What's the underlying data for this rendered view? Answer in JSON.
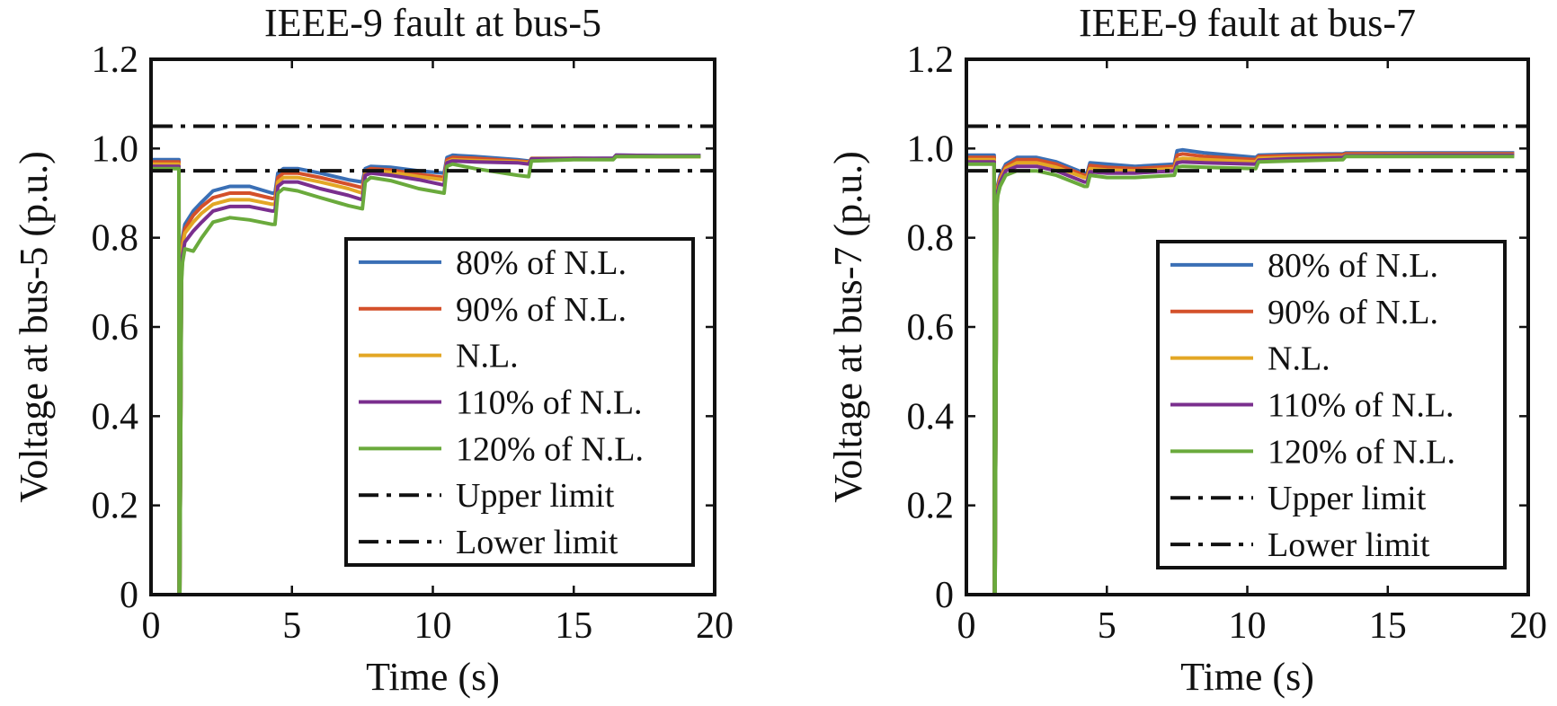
{
  "chart_data": [
    {
      "type": "line",
      "title": "IEEE-9 fault at bus-5",
      "xlabel": "Time (s)",
      "ylabel": "Voltage at bus-5 (p.u.)",
      "xlim": [
        0,
        20
      ],
      "ylim": [
        0,
        1.2
      ],
      "xticks": [
        "0",
        "5",
        "10",
        "15",
        "20"
      ],
      "yticks": [
        "0",
        "0.2",
        "0.4",
        "0.6",
        "0.8",
        "1.0",
        "1.2"
      ],
      "grid": false,
      "legend_position": "bottom-right",
      "limits": [
        {
          "name": "Upper limit",
          "value": 1.05
        },
        {
          "name": "Lower limit",
          "value": 0.95
        }
      ],
      "series": [
        {
          "name": "80% of N.L.",
          "color": "#3a6fb5",
          "x": [
            0,
            0.99,
            1.0,
            1.02,
            1.08,
            1.12,
            1.2,
            1.5,
            1.8,
            2.2,
            2.8,
            3.5,
            4.3,
            4.4,
            4.5,
            4.7,
            5.2,
            6.0,
            7.0,
            7.5,
            7.6,
            7.8,
            8.5,
            9.5,
            10.4,
            10.5,
            10.7,
            11.5,
            13.0,
            13.4,
            13.5,
            15.0,
            16.4,
            16.5,
            18.0,
            19.5
          ],
          "y": [
            0.975,
            0.975,
            0.0,
            0.0,
            0.74,
            0.8,
            0.83,
            0.86,
            0.88,
            0.905,
            0.915,
            0.915,
            0.9,
            0.9,
            0.945,
            0.955,
            0.955,
            0.945,
            0.93,
            0.925,
            0.955,
            0.96,
            0.958,
            0.95,
            0.945,
            0.98,
            0.985,
            0.982,
            0.975,
            0.972,
            0.975,
            0.977,
            0.978,
            0.985,
            0.984,
            0.984
          ]
        },
        {
          "name": "90% of N.L.",
          "color": "#d4502a",
          "x": [
            0,
            0.99,
            1.0,
            1.02,
            1.08,
            1.12,
            1.2,
            1.5,
            1.8,
            2.2,
            2.8,
            3.5,
            4.3,
            4.4,
            4.5,
            4.7,
            5.2,
            6.0,
            7.0,
            7.5,
            7.6,
            7.8,
            8.5,
            9.5,
            10.4,
            10.5,
            10.7,
            11.5,
            13.0,
            13.4,
            13.5,
            15.0,
            16.4,
            16.5,
            18.0,
            19.5
          ],
          "y": [
            0.97,
            0.97,
            0.0,
            0.0,
            0.73,
            0.79,
            0.82,
            0.85,
            0.87,
            0.89,
            0.9,
            0.9,
            0.888,
            0.888,
            0.935,
            0.945,
            0.945,
            0.935,
            0.92,
            0.912,
            0.95,
            0.955,
            0.952,
            0.942,
            0.935,
            0.975,
            0.98,
            0.978,
            0.972,
            0.97,
            0.975,
            0.976,
            0.977,
            0.983,
            0.982,
            0.982
          ]
        },
        {
          "name": "N.L.",
          "color": "#e3a725",
          "x": [
            0,
            0.99,
            1.0,
            1.02,
            1.08,
            1.12,
            1.2,
            1.5,
            1.8,
            2.2,
            2.8,
            3.5,
            4.3,
            4.4,
            4.5,
            4.7,
            5.2,
            6.0,
            7.0,
            7.5,
            7.6,
            7.8,
            8.5,
            9.5,
            10.4,
            10.5,
            10.7,
            11.5,
            13.0,
            13.4,
            13.5,
            15.0,
            16.4,
            16.5,
            18.0,
            19.5
          ],
          "y": [
            0.965,
            0.965,
            0.0,
            0.0,
            0.72,
            0.78,
            0.81,
            0.835,
            0.855,
            0.875,
            0.885,
            0.885,
            0.875,
            0.875,
            0.925,
            0.935,
            0.935,
            0.925,
            0.91,
            0.9,
            0.945,
            0.95,
            0.947,
            0.937,
            0.93,
            0.97,
            0.975,
            0.973,
            0.97,
            0.968,
            0.978,
            0.978,
            0.977,
            0.982,
            0.982,
            0.982
          ]
        },
        {
          "name": "110% of N.L.",
          "color": "#7a2f8e",
          "x": [
            0,
            0.99,
            1.0,
            1.02,
            1.08,
            1.12,
            1.2,
            1.5,
            1.8,
            2.2,
            2.8,
            3.5,
            4.3,
            4.4,
            4.5,
            4.7,
            5.2,
            6.0,
            7.0,
            7.5,
            7.6,
            7.8,
            8.5,
            9.5,
            10.4,
            10.5,
            10.7,
            11.5,
            13.0,
            13.4,
            13.5,
            15.0,
            16.4,
            16.5,
            18.0,
            19.5
          ],
          "y": [
            0.96,
            0.96,
            0.0,
            0.0,
            0.71,
            0.76,
            0.79,
            0.815,
            0.835,
            0.86,
            0.87,
            0.87,
            0.86,
            0.86,
            0.915,
            0.925,
            0.925,
            0.91,
            0.895,
            0.885,
            0.94,
            0.945,
            0.94,
            0.93,
            0.918,
            0.968,
            0.972,
            0.97,
            0.968,
            0.965,
            0.977,
            0.978,
            0.978,
            0.985,
            0.984,
            0.984
          ]
        },
        {
          "name": "120% of N.L.",
          "color": "#6aaa3c",
          "x": [
            0,
            0.99,
            1.0,
            1.02,
            1.08,
            1.12,
            1.2,
            1.5,
            1.8,
            2.2,
            2.8,
            3.5,
            4.3,
            4.4,
            4.5,
            4.7,
            5.2,
            6.0,
            7.0,
            7.5,
            7.6,
            7.8,
            8.5,
            9.5,
            10.4,
            10.5,
            10.7,
            11.5,
            13.0,
            13.4,
            13.5,
            15.0,
            16.4,
            16.5,
            18.0,
            19.5
          ],
          "y": [
            0.955,
            0.955,
            0.0,
            0.0,
            0.7,
            0.745,
            0.775,
            0.77,
            0.8,
            0.835,
            0.845,
            0.84,
            0.83,
            0.83,
            0.9,
            0.91,
            0.905,
            0.89,
            0.872,
            0.865,
            0.925,
            0.935,
            0.928,
            0.91,
            0.9,
            0.96,
            0.965,
            0.955,
            0.94,
            0.937,
            0.972,
            0.975,
            0.975,
            0.982,
            0.982,
            0.982
          ]
        }
      ]
    },
    {
      "type": "line",
      "title": "IEEE-9 fault at bus-7",
      "xlabel": "Time (s)",
      "ylabel": "Voltage at bus-7 (p.u.)",
      "xlim": [
        0,
        20
      ],
      "ylim": [
        0,
        1.2
      ],
      "xticks": [
        "0",
        "5",
        "10",
        "15",
        "20"
      ],
      "yticks": [
        "0",
        "0.2",
        "0.4",
        "0.6",
        "0.8",
        "1.0",
        "1.2"
      ],
      "grid": false,
      "legend_position": "bottom-right",
      "limits": [
        {
          "name": "Upper limit",
          "value": 1.05
        },
        {
          "name": "Lower limit",
          "value": 0.95
        }
      ],
      "series": [
        {
          "name": "80% of N.L.",
          "color": "#3a6fb5",
          "x": [
            0,
            0.99,
            1.0,
            1.02,
            1.08,
            1.12,
            1.2,
            1.4,
            1.8,
            2.5,
            3.2,
            4.2,
            4.3,
            4.4,
            5.0,
            6.0,
            7.4,
            7.5,
            7.7,
            8.5,
            10.3,
            10.4,
            11.5,
            13.4,
            13.5,
            16.5,
            19.5
          ],
          "y": [
            0.985,
            0.985,
            0.0,
            0.0,
            0.89,
            0.92,
            0.94,
            0.965,
            0.98,
            0.98,
            0.97,
            0.945,
            0.945,
            0.968,
            0.965,
            0.96,
            0.965,
            0.995,
            0.997,
            0.99,
            0.98,
            0.985,
            0.987,
            0.988,
            0.99,
            0.99,
            0.99
          ]
        },
        {
          "name": "90% of N.L.",
          "color": "#d4502a",
          "x": [
            0,
            0.99,
            1.0,
            1.02,
            1.08,
            1.12,
            1.2,
            1.4,
            1.8,
            2.5,
            3.2,
            4.2,
            4.3,
            4.4,
            5.0,
            6.0,
            7.4,
            7.5,
            7.7,
            8.5,
            10.3,
            10.4,
            11.5,
            13.4,
            13.5,
            16.5,
            19.5
          ],
          "y": [
            0.98,
            0.98,
            0.0,
            0.0,
            0.885,
            0.915,
            0.935,
            0.96,
            0.975,
            0.975,
            0.965,
            0.94,
            0.94,
            0.962,
            0.958,
            0.955,
            0.96,
            0.985,
            0.988,
            0.982,
            0.975,
            0.982,
            0.984,
            0.986,
            0.988,
            0.988,
            0.988
          ]
        },
        {
          "name": "N.L.",
          "color": "#e3a725",
          "x": [
            0,
            0.99,
            1.0,
            1.02,
            1.08,
            1.12,
            1.2,
            1.4,
            1.8,
            2.5,
            3.2,
            4.2,
            4.3,
            4.4,
            5.0,
            6.0,
            7.4,
            7.5,
            7.7,
            8.5,
            10.3,
            10.4,
            11.5,
            13.4,
            13.5,
            16.5,
            19.5
          ],
          "y": [
            0.975,
            0.975,
            0.0,
            0.0,
            0.88,
            0.91,
            0.93,
            0.955,
            0.968,
            0.968,
            0.958,
            0.935,
            0.935,
            0.955,
            0.952,
            0.95,
            0.955,
            0.975,
            0.978,
            0.975,
            0.97,
            0.978,
            0.98,
            0.982,
            0.985,
            0.986,
            0.986
          ]
        },
        {
          "name": "110% of N.L.",
          "color": "#7a2f8e",
          "x": [
            0,
            0.99,
            1.0,
            1.02,
            1.08,
            1.12,
            1.2,
            1.4,
            1.8,
            2.5,
            3.2,
            4.2,
            4.3,
            4.4,
            5.0,
            6.0,
            7.4,
            7.5,
            7.7,
            8.5,
            10.3,
            10.4,
            11.5,
            13.4,
            13.5,
            16.5,
            19.5
          ],
          "y": [
            0.97,
            0.97,
            0.0,
            0.0,
            0.875,
            0.905,
            0.925,
            0.95,
            0.96,
            0.96,
            0.95,
            0.925,
            0.925,
            0.948,
            0.945,
            0.945,
            0.95,
            0.968,
            0.97,
            0.968,
            0.965,
            0.974,
            0.977,
            0.98,
            0.984,
            0.985,
            0.985
          ]
        },
        {
          "name": "120% of N.L.",
          "color": "#6aaa3c",
          "x": [
            0,
            0.99,
            1.0,
            1.02,
            1.08,
            1.12,
            1.2,
            1.4,
            1.8,
            2.5,
            3.2,
            4.2,
            4.3,
            4.4,
            5.0,
            6.0,
            7.4,
            7.5,
            7.7,
            8.5,
            10.3,
            10.4,
            11.5,
            13.4,
            13.5,
            16.5,
            19.5
          ],
          "y": [
            0.965,
            0.965,
            0.0,
            0.0,
            0.87,
            0.895,
            0.915,
            0.94,
            0.95,
            0.95,
            0.94,
            0.915,
            0.915,
            0.94,
            0.935,
            0.935,
            0.94,
            0.958,
            0.96,
            0.958,
            0.955,
            0.97,
            0.972,
            0.975,
            0.982,
            0.982,
            0.982
          ]
        }
      ]
    }
  ]
}
